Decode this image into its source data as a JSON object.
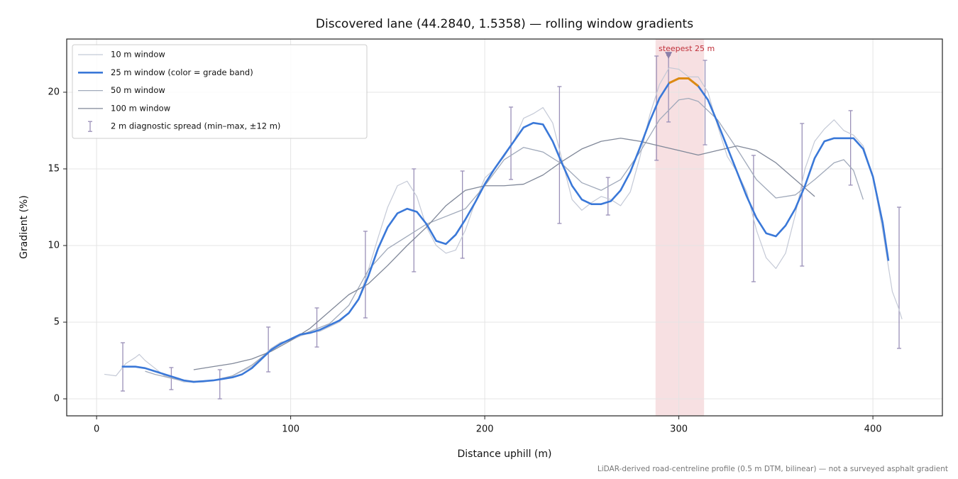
{
  "chart_data": {
    "type": "line",
    "title": "Discovered lane (44.2840, 1.5358) — rolling window gradients",
    "x_label": "Distance uphill (m)",
    "y_label": "Gradient (%)",
    "footnote": "LiDAR-derived road-centreline profile (0.5 m DTM, bilinear) — not a surveyed asphalt gradient",
    "xlim": [
      -15.4,
      435.8
    ],
    "ylim": [
      -1.11,
      23.47
    ],
    "xticks": [
      0,
      100,
      200,
      300,
      400
    ],
    "yticks": [
      0,
      5,
      10,
      15,
      20
    ],
    "grid": true,
    "legend": "upper left",
    "span": {
      "x": [
        288,
        313
      ],
      "color": "#e8a0a8"
    },
    "annotation": {
      "text": "steepest 25 m",
      "x": 294.7,
      "y": 22.4,
      "color": "#c0303a",
      "marker_color": "#8a7fa8"
    },
    "series": [
      {
        "name": "10 m window",
        "color": "#c4c9d6",
        "width": 1.2,
        "x": [
          4,
          10,
          15,
          20,
          22,
          25,
          30,
          35,
          40,
          45,
          50,
          55,
          60,
          65,
          70,
          75,
          80,
          85,
          90,
          95,
          100,
          105,
          110,
          115,
          120,
          125,
          130,
          135,
          140,
          145,
          150,
          155,
          160,
          165,
          170,
          175,
          180,
          185,
          190,
          195,
          200,
          205,
          210,
          215,
          220,
          225,
          230,
          235,
          240,
          245,
          250,
          255,
          260,
          265,
          270,
          275,
          280,
          285,
          290,
          295,
          300,
          305,
          310,
          315,
          320,
          325,
          330,
          335,
          340,
          345,
          350,
          355,
          360,
          365,
          370,
          375,
          380,
          385,
          390,
          395,
          400,
          405,
          410,
          413,
          415
        ],
        "values": [
          1.6,
          1.5,
          2.3,
          2.7,
          2.9,
          2.5,
          2.0,
          1.5,
          1.3,
          1.1,
          1.1,
          1.1,
          1.2,
          1.3,
          1.5,
          1.8,
          2.1,
          2.7,
          3.3,
          3.7,
          3.8,
          4.1,
          4.3,
          4.4,
          4.7,
          5.0,
          5.6,
          6.5,
          8.4,
          10.5,
          12.5,
          13.9,
          14.2,
          13.2,
          11.2,
          10.0,
          9.5,
          9.7,
          11.0,
          12.8,
          14.4,
          15.0,
          15.8,
          16.8,
          18.3,
          18.6,
          19.0,
          18.0,
          15.5,
          13.0,
          12.3,
          12.8,
          13.2,
          13.0,
          12.6,
          13.5,
          15.8,
          18.5,
          20.5,
          21.6,
          21.5,
          21.0,
          21.0,
          20.0,
          17.8,
          15.8,
          14.8,
          13.5,
          11.0,
          9.2,
          8.5,
          9.5,
          12.0,
          15.0,
          16.8,
          17.6,
          18.2,
          17.5,
          17.2,
          16.5,
          14.5,
          11.0,
          7.0,
          6.0,
          5.2
        ]
      },
      {
        "name": "25 m window (color = grade band)",
        "color": "#3a78d8",
        "width": 2.6,
        "grade_band": {
          "above": 20,
          "color": "#dd8a12"
        },
        "x": [
          13,
          20,
          25,
          30,
          35,
          40,
          45,
          50,
          55,
          60,
          65,
          70,
          75,
          80,
          85,
          90,
          95,
          100,
          105,
          110,
          115,
          120,
          125,
          130,
          135,
          140,
          145,
          150,
          155,
          160,
          165,
          170,
          175,
          180,
          185,
          190,
          195,
          200,
          205,
          210,
          215,
          220,
          225,
          230,
          235,
          240,
          245,
          250,
          255,
          260,
          265,
          270,
          275,
          280,
          285,
          290,
          295,
          300,
          305,
          310,
          315,
          320,
          325,
          330,
          335,
          340,
          345,
          350,
          355,
          360,
          365,
          370,
          375,
          380,
          385,
          390,
          395,
          400,
          405,
          408
        ],
        "values": [
          2.1,
          2.1,
          2.0,
          1.8,
          1.6,
          1.4,
          1.2,
          1.1,
          1.15,
          1.2,
          1.3,
          1.4,
          1.6,
          2.0,
          2.6,
          3.2,
          3.6,
          3.9,
          4.2,
          4.3,
          4.5,
          4.8,
          5.1,
          5.6,
          6.5,
          8.0,
          9.8,
          11.2,
          12.1,
          12.4,
          12.2,
          11.4,
          10.3,
          10.1,
          10.7,
          11.7,
          12.8,
          14.0,
          15.0,
          15.9,
          16.8,
          17.7,
          18.0,
          17.9,
          16.8,
          15.3,
          13.9,
          13.0,
          12.7,
          12.7,
          12.9,
          13.6,
          14.8,
          16.4,
          18.1,
          19.6,
          20.6,
          20.9,
          20.9,
          20.4,
          19.5,
          18.0,
          16.4,
          14.8,
          13.2,
          11.8,
          10.8,
          10.6,
          11.3,
          12.4,
          13.9,
          15.7,
          16.8,
          17.0,
          17.0,
          17.0,
          16.3,
          14.5,
          11.5,
          9.0
        ]
      },
      {
        "name": "50 m window",
        "color": "#a0a9ba",
        "width": 1.3,
        "x": [
          25,
          30,
          40,
          50,
          60,
          70,
          80,
          90,
          100,
          110,
          120,
          130,
          140,
          150,
          160,
          170,
          180,
          190,
          200,
          210,
          220,
          230,
          240,
          250,
          260,
          270,
          280,
          290,
          300,
          305,
          310,
          320,
          330,
          340,
          350,
          360,
          370,
          380,
          385,
          390,
          395
        ],
        "values": [
          1.8,
          1.6,
          1.3,
          1.15,
          1.2,
          1.5,
          2.2,
          3.2,
          3.9,
          4.4,
          4.9,
          6.1,
          8.4,
          9.8,
          10.6,
          11.4,
          11.9,
          12.4,
          13.9,
          15.6,
          16.4,
          16.1,
          15.3,
          14.1,
          13.6,
          14.3,
          16.1,
          18.2,
          19.5,
          19.6,
          19.4,
          18.2,
          16.3,
          14.3,
          13.1,
          13.3,
          14.3,
          15.4,
          15.6,
          14.9,
          13.0
        ]
      },
      {
        "name": "100 m window",
        "color": "#808899",
        "width": 1.3,
        "x": [
          50,
          60,
          70,
          80,
          90,
          100,
          110,
          120,
          130,
          140,
          150,
          160,
          170,
          180,
          190,
          200,
          210,
          220,
          230,
          240,
          250,
          260,
          270,
          280,
          290,
          300,
          310,
          320,
          330,
          340,
          350,
          360,
          370
        ],
        "values": [
          1.9,
          2.1,
          2.3,
          2.6,
          3.1,
          3.8,
          4.6,
          5.7,
          6.8,
          7.5,
          8.7,
          10.0,
          11.2,
          12.6,
          13.6,
          13.9,
          13.9,
          14.0,
          14.6,
          15.5,
          16.3,
          16.8,
          17.0,
          16.8,
          16.5,
          16.2,
          15.9,
          16.2,
          16.5,
          16.2,
          15.4,
          14.3,
          13.2
        ]
      }
    ],
    "error_bars": {
      "name": "2 m diagnostic spread (min–max, ±12 m)",
      "color": "#9a90b8",
      "x": [
        13.5,
        38.5,
        63.5,
        88.5,
        113.5,
        138.5,
        163.5,
        188.5,
        213.5,
        238.5,
        263.5,
        288.5,
        294.7,
        313.5,
        338.5,
        363.5,
        388.5,
        413.5
      ],
      "low": [
        0.51,
        0.6,
        0.0,
        1.76,
        3.38,
        5.28,
        8.29,
        9.17,
        14.31,
        11.44,
        11.99,
        15.56,
        18.06,
        16.57,
        7.64,
        8.66,
        13.94,
        3.29
      ],
      "high": [
        3.66,
        2.04,
        1.9,
        4.68,
        5.93,
        10.93,
        15.0,
        14.86,
        19.03,
        20.37,
        14.44,
        22.36,
        22.4,
        22.08,
        15.88,
        17.96,
        18.8,
        12.5
      ]
    }
  }
}
